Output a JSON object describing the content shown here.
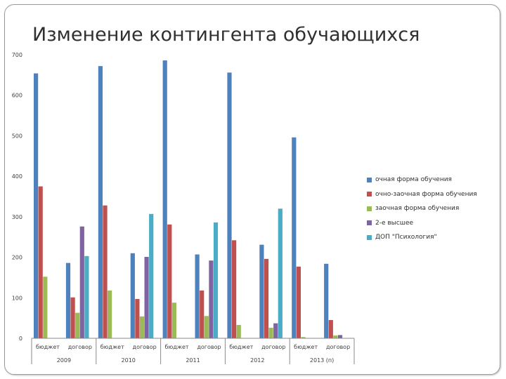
{
  "slide": {
    "title": "Изменение контингента обучающихся"
  },
  "chart_data": {
    "type": "bar",
    "title": "Изменение контингента обучающихся",
    "xlabel": "",
    "ylabel": "",
    "ylim": [
      0,
      700
    ],
    "yticks": [
      "0",
      "100",
      "200",
      "300",
      "400",
      "500",
      "600",
      "700"
    ],
    "ytick_values": [
      0,
      100,
      200,
      300,
      400,
      500,
      600,
      700
    ],
    "grid": false,
    "legend_position": "right",
    "categories": [
      "бюджет",
      "договор",
      "бюджет",
      "договор",
      "бюджет",
      "договор",
      "бюджет",
      "договор",
      "бюджет",
      "договор"
    ],
    "groups": [
      {
        "label": "2009",
        "span": 2
      },
      {
        "label": "2010",
        "span": 2
      },
      {
        "label": "2011",
        "span": 2
      },
      {
        "label": "2012",
        "span": 2
      },
      {
        "label": "2013 (п)",
        "span": 2
      }
    ],
    "series": [
      {
        "name": "очная форма обучения",
        "color": "#4F81BD",
        "values": [
          654,
          186,
          672,
          210,
          686,
          207,
          656,
          231,
          496,
          184
        ]
      },
      {
        "name": "очно-заочная форма обучения",
        "color": "#C0504D",
        "values": [
          375,
          101,
          328,
          97,
          281,
          118,
          242,
          196,
          177,
          45
        ]
      },
      {
        "name": "заочная форма обучения",
        "color": "#9BBB59",
        "values": [
          152,
          63,
          118,
          54,
          88,
          55,
          33,
          26,
          3,
          7
        ]
      },
      {
        "name": "2-е высшее",
        "color": "#8064A2",
        "values": [
          0,
          276,
          0,
          201,
          0,
          192,
          0,
          37,
          0,
          8
        ]
      },
      {
        "name": "ДОП \"Психология\"",
        "color": "#4BACC6",
        "values": [
          0,
          203,
          0,
          307,
          0,
          286,
          0,
          320,
          0,
          0
        ]
      }
    ]
  }
}
